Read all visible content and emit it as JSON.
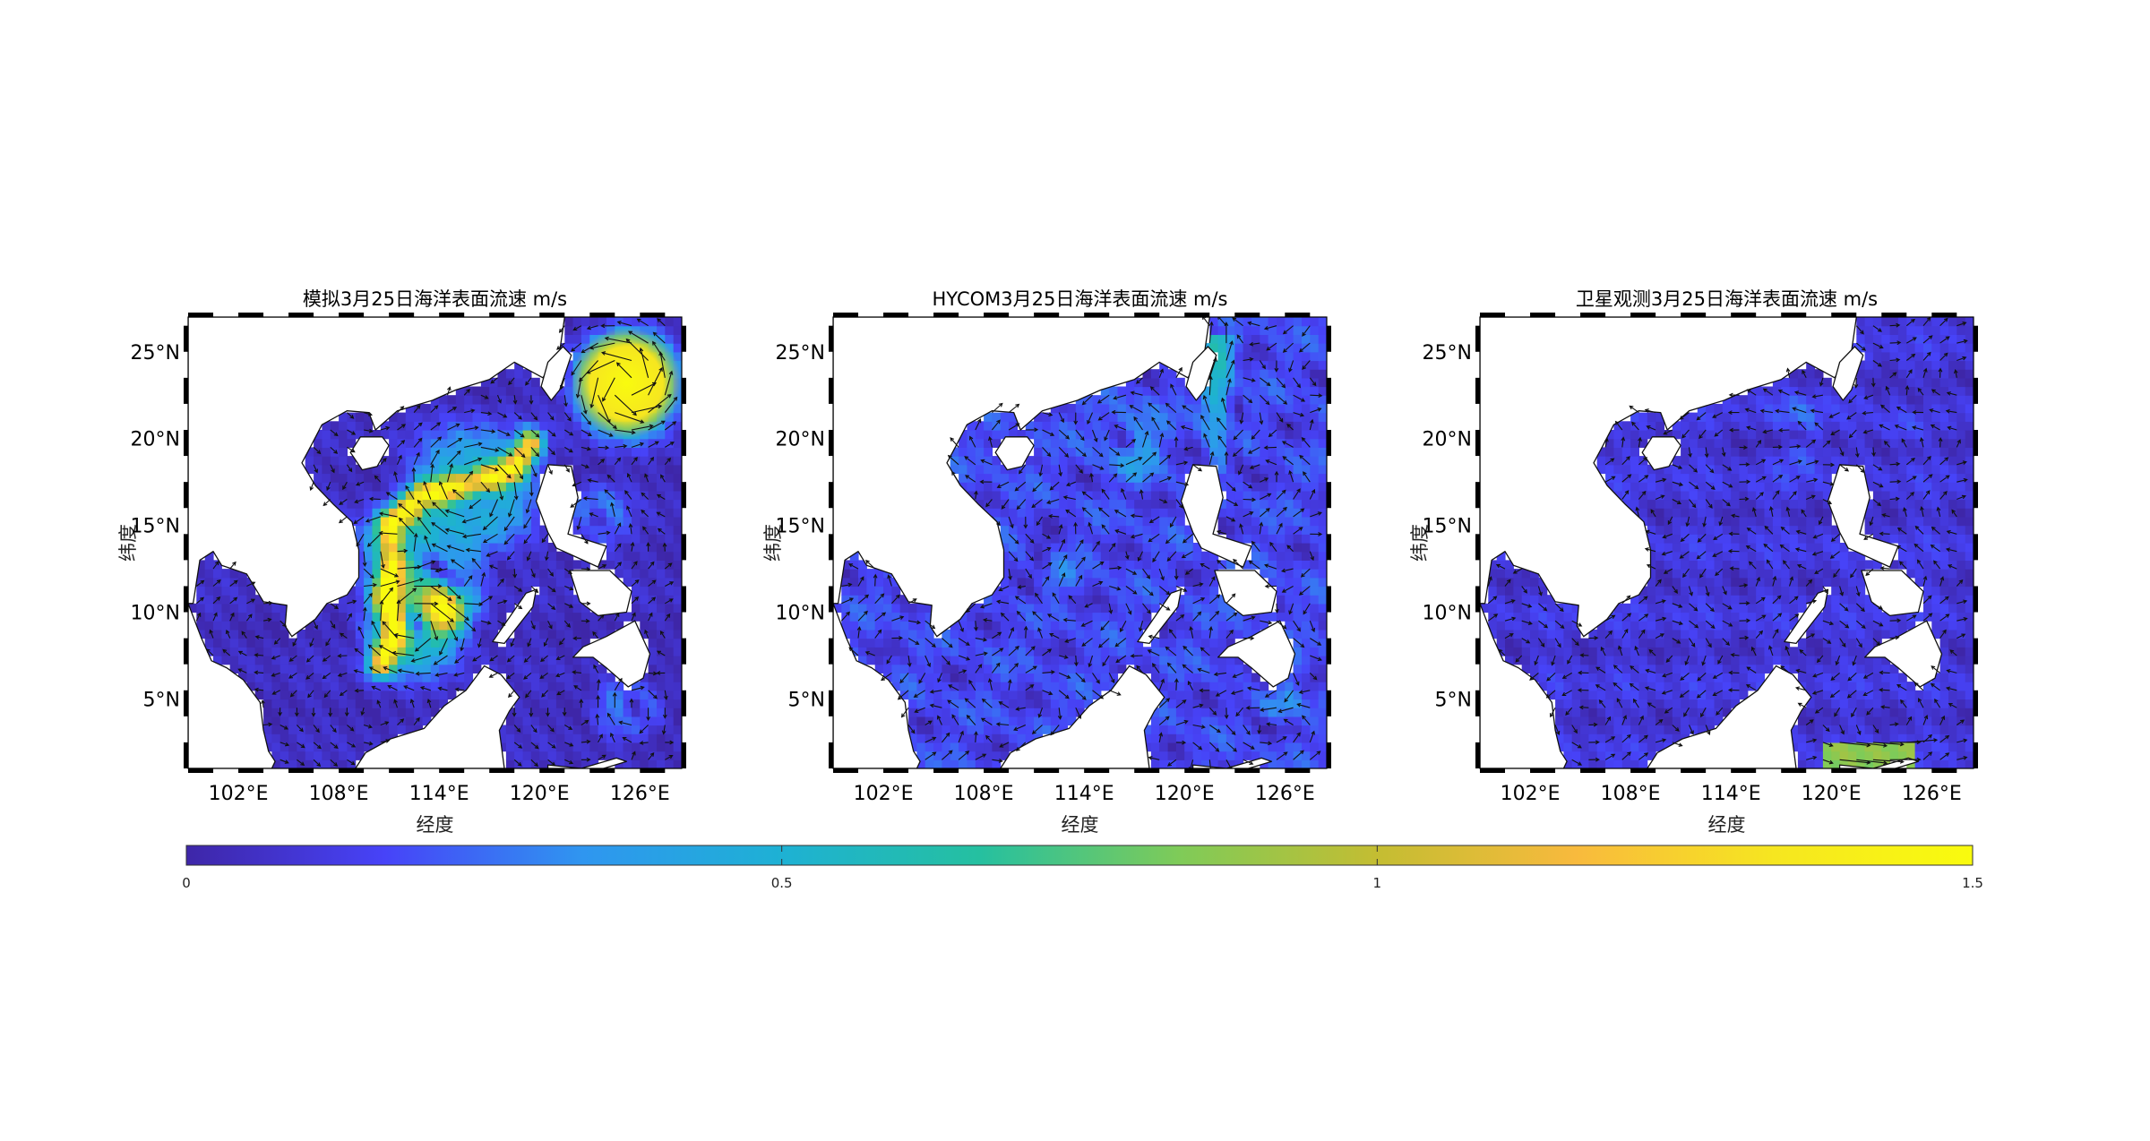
{
  "figure": {
    "panels": [
      {
        "title": "模拟3月25日海洋表面流速 m/s",
        "xlabel": "经度",
        "ylabel": "纬度",
        "regime": "model"
      },
      {
        "title": "HYCOM3月25日海洋表面流速 m/s",
        "xlabel": "经度",
        "ylabel": "纬度",
        "regime": "hycom"
      },
      {
        "title": "卫星观测3月25日海洋表面流速 m/s",
        "xlabel": "经度",
        "ylabel": "纬度",
        "regime": "satellite"
      }
    ],
    "lon_range": [
      99,
      128.5
    ],
    "lat_range": [
      1,
      27
    ],
    "x_ticks": [
      102,
      108,
      114,
      120,
      126
    ],
    "x_tick_labels": [
      "102°E",
      "108°E",
      "114°E",
      "120°E",
      "126°E"
    ],
    "y_ticks": [
      5,
      10,
      15,
      20,
      25
    ],
    "y_tick_labels": [
      "5°N",
      "10°N",
      "15°N",
      "20°N",
      "25°N"
    ],
    "colorbar": {
      "min": 0,
      "max": 1.5,
      "ticks": [
        0,
        0.5,
        1,
        1.5
      ],
      "tick_labels": [
        "0",
        "0.5",
        "1",
        "1.5"
      ],
      "colormap": "parula",
      "colors": [
        "#3e26a8",
        "#4743f8",
        "#2f96f0",
        "#1eb1d4",
        "#25c0a0",
        "#7fcb58",
        "#c4bd32",
        "#f8ba3d",
        "#f6e620",
        "#f9fb0e"
      ]
    }
  }
}
